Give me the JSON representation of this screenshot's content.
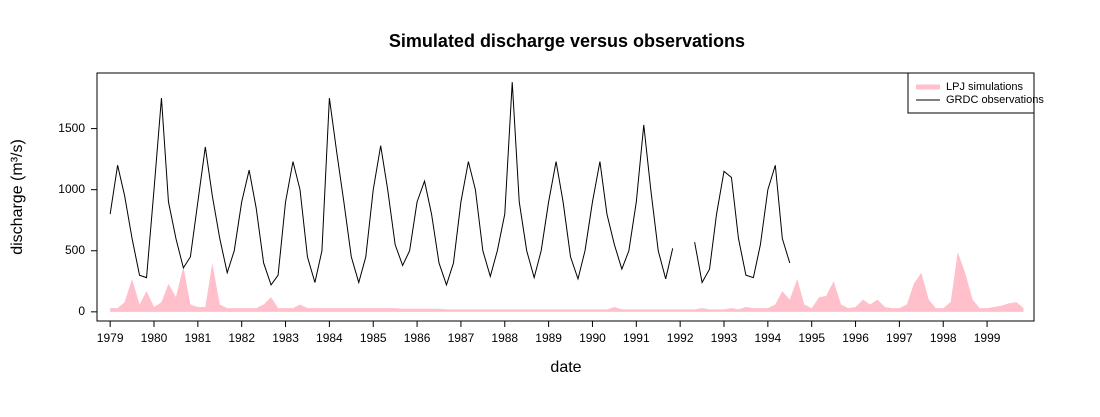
{
  "chart_data": {
    "type": "line",
    "title": "Simulated discharge versus observations",
    "xlabel": "date",
    "ylabel": "discharge (m³/s)",
    "xlim": [
      1978.7,
      2000.07
    ],
    "ylim": [
      -75,
      1955
    ],
    "xticks": [
      1979,
      1980,
      1981,
      1982,
      1983,
      1984,
      1985,
      1986,
      1987,
      1988,
      1989,
      1990,
      1991,
      1992,
      1993,
      1994,
      1995,
      1996,
      1997,
      1998,
      1999
    ],
    "yticks": [
      0,
      500,
      1000,
      1500
    ],
    "legend": "top-right",
    "x": [
      1979,
      1979.17,
      1979.33,
      1979.5,
      1979.67,
      1979.83,
      1980,
      1980.17,
      1980.33,
      1980.5,
      1980.67,
      1980.83,
      1981,
      1981.17,
      1981.33,
      1981.5,
      1981.67,
      1981.83,
      1982,
      1982.17,
      1982.33,
      1982.5,
      1982.67,
      1982.83,
      1983,
      1983.17,
      1983.33,
      1983.5,
      1983.67,
      1983.83,
      1984,
      1984.17,
      1984.33,
      1984.5,
      1984.67,
      1984.83,
      1985,
      1985.17,
      1985.33,
      1985.5,
      1985.67,
      1985.83,
      1986,
      1986.17,
      1986.33,
      1986.5,
      1986.67,
      1986.83,
      1987,
      1987.17,
      1987.33,
      1987.5,
      1987.67,
      1987.83,
      1988,
      1988.17,
      1988.33,
      1988.5,
      1988.67,
      1988.83,
      1989,
      1989.17,
      1989.33,
      1989.5,
      1989.67,
      1989.83,
      1990,
      1990.17,
      1990.33,
      1990.5,
      1990.67,
      1990.83,
      1991,
      1991.17,
      1991.33,
      1991.5,
      1991.67,
      1991.83,
      1992,
      1992.17,
      1992.33,
      1992.5,
      1992.67,
      1992.83,
      1993,
      1993.17,
      1993.33,
      1993.5,
      1993.67,
      1993.83,
      1994,
      1994.17,
      1994.33,
      1994.5,
      1994.67,
      1994.83,
      1995,
      1995.17,
      1995.33,
      1995.5,
      1995.67,
      1995.83,
      1996,
      1996.17,
      1996.33,
      1996.5,
      1996.67,
      1996.83,
      1997,
      1997.17,
      1997.33,
      1997.5,
      1997.67,
      1997.83,
      1998,
      1998.17,
      1998.33,
      1998.5,
      1998.67,
      1998.83,
      1999,
      1999.17,
      1999.33,
      1999.5,
      1999.67,
      1999.83
    ],
    "series": [
      {
        "name": "LPJ simulations",
        "kind": "area",
        "color": "#ffc0cb",
        "values": [
          30,
          30,
          80,
          270,
          60,
          170,
          40,
          80,
          230,
          120,
          370,
          60,
          40,
          40,
          400,
          60,
          30,
          30,
          30,
          30,
          30,
          60,
          120,
          30,
          30,
          30,
          60,
          30,
          30,
          30,
          30,
          30,
          30,
          30,
          30,
          30,
          30,
          30,
          30,
          30,
          25,
          25,
          25,
          25,
          25,
          25,
          20,
          20,
          20,
          20,
          20,
          20,
          20,
          20,
          20,
          20,
          20,
          20,
          20,
          20,
          20,
          20,
          20,
          20,
          20,
          20,
          20,
          20,
          20,
          40,
          20,
          20,
          20,
          20,
          20,
          20,
          20,
          20,
          20,
          20,
          20,
          30,
          20,
          20,
          20,
          30,
          20,
          40,
          30,
          30,
          30,
          60,
          170,
          100,
          270,
          60,
          30,
          120,
          130,
          250,
          60,
          30,
          40,
          100,
          60,
          100,
          40,
          30,
          30,
          60,
          230,
          320,
          100,
          30,
          30,
          80,
          490,
          320,
          100,
          30,
          30,
          40,
          50,
          70,
          80,
          30
        ]
      },
      {
        "name": "GRDC observations",
        "kind": "line",
        "color": "#000000",
        "values": [
          800,
          1200,
          950,
          600,
          300,
          280,
          1000,
          1750,
          900,
          600,
          360,
          450,
          900,
          1350,
          950,
          600,
          320,
          500,
          900,
          1160,
          850,
          400,
          220,
          300,
          900,
          1230,
          1000,
          450,
          240,
          500,
          1750,
          1300,
          900,
          450,
          240,
          450,
          1000,
          1360,
          1000,
          550,
          380,
          500,
          900,
          1070,
          800,
          400,
          220,
          400,
          900,
          1230,
          1000,
          500,
          290,
          500,
          800,
          1880,
          900,
          500,
          280,
          500,
          900,
          1230,
          900,
          450,
          270,
          500,
          900,
          1230,
          800,
          550,
          350,
          500,
          900,
          1530,
          1000,
          500,
          270,
          520,
          null,
          null,
          570,
          240,
          350,
          800,
          1150,
          1100,
          600,
          300,
          280,
          550,
          1000,
          1200,
          600,
          400,
          null,
          null,
          null,
          null,
          null,
          null,
          null,
          null,
          null,
          null,
          null,
          null,
          null,
          null,
          null,
          null,
          null,
          null,
          null,
          null,
          null,
          null,
          null,
          null,
          null,
          null,
          null,
          null,
          null,
          null,
          null,
          null
        ]
      }
    ]
  }
}
